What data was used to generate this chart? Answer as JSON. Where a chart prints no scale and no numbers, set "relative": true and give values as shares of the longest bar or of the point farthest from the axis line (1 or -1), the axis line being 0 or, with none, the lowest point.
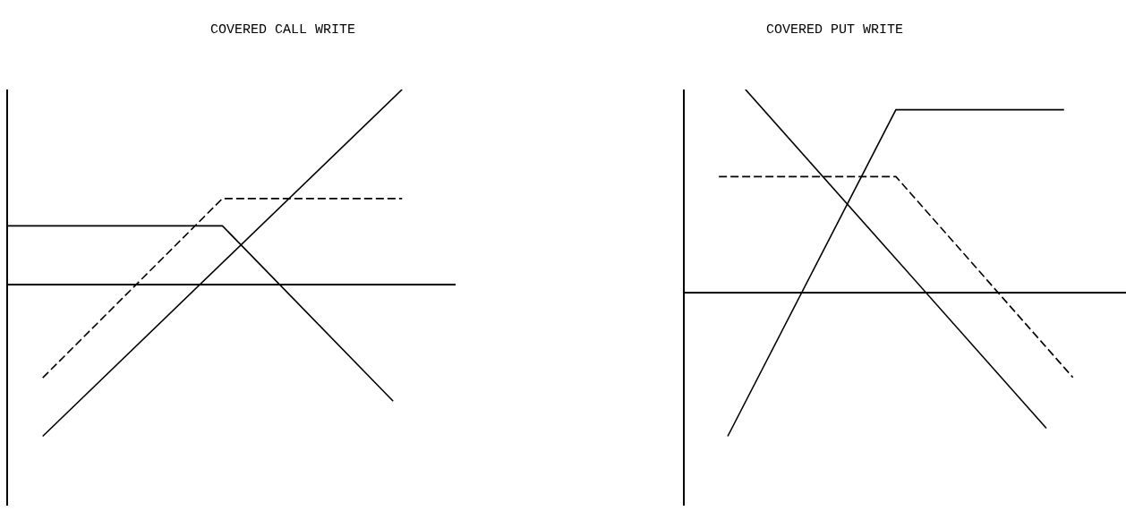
{
  "chart_data": [
    {
      "type": "line",
      "title": "COVERED CALL WRITE",
      "relative": true,
      "categories": [
        null,
        null,
        null,
        null,
        null,
        null,
        null,
        null,
        null,
        null,
        null,
        null,
        null,
        null,
        null,
        null,
        null,
        null,
        null,
        null,
        null,
        null,
        null,
        null,
        null,
        null,
        null,
        null,
        null,
        null,
        null,
        null,
        null,
        null,
        null,
        null,
        null,
        null,
        null,
        null,
        null,
        null,
        null,
        null,
        null,
        null,
        null,
        null,
        null,
        null,
        null
      ],
      "series": [
        {
          "color": "#000000",
          "line_style": "solid",
          "values": [
            null,
            null,
            null,
            null,
            -0.78,
            null,
            null,
            null,
            null,
            null,
            null,
            null,
            null,
            null,
            null,
            null,
            null,
            null,
            null,
            null,
            null,
            null,
            null,
            null,
            null,
            null,
            null,
            null,
            null,
            null,
            null,
            null,
            null,
            null,
            null,
            null,
            null,
            null,
            null,
            null,
            null,
            null,
            null,
            null,
            1.0,
            null,
            null,
            null,
            null,
            null,
            null
          ]
        },
        {
          "color": "#000000",
          "line_style": "solid",
          "values": [
            0.3,
            null,
            null,
            null,
            null,
            null,
            null,
            null,
            null,
            null,
            null,
            null,
            null,
            null,
            null,
            null,
            null,
            null,
            null,
            null,
            null,
            null,
            null,
            null,
            0.3,
            null,
            null,
            null,
            null,
            null,
            null,
            null,
            null,
            null,
            null,
            null,
            null,
            null,
            null,
            null,
            null,
            null,
            null,
            -0.6,
            null,
            null,
            null,
            null,
            null,
            null,
            null
          ]
        },
        {
          "color": "#000000",
          "line_style": "dashed",
          "values": [
            null,
            null,
            null,
            null,
            -0.48,
            null,
            null,
            null,
            null,
            null,
            null,
            null,
            null,
            null,
            null,
            null,
            null,
            null,
            null,
            null,
            null,
            null,
            null,
            null,
            0.44,
            null,
            null,
            null,
            null,
            null,
            null,
            null,
            null,
            null,
            null,
            null,
            null,
            null,
            null,
            null,
            null,
            null,
            null,
            null,
            0.44,
            null,
            null,
            null,
            null,
            null,
            null
          ]
        }
      ]
    },
    {
      "type": "line",
      "title": "COVERED PUT WRITE",
      "relative": true,
      "categories": [
        null,
        null,
        null,
        null,
        null,
        null,
        null,
        null,
        null,
        null,
        null,
        null,
        null,
        null,
        null,
        null,
        null,
        null,
        null,
        null,
        null,
        null,
        null,
        null,
        null,
        null,
        null,
        null,
        null,
        null,
        null,
        null,
        null,
        null,
        null,
        null,
        null,
        null,
        null,
        null,
        null,
        null,
        null,
        null,
        null,
        null,
        null,
        null,
        null,
        null,
        null
      ],
      "series": [
        {
          "color": "#000000",
          "line_style": "solid",
          "values": [
            null,
            null,
            null,
            null,
            null,
            null,
            null,
            1.0,
            null,
            null,
            null,
            null,
            null,
            null,
            null,
            null,
            null,
            null,
            null,
            null,
            null,
            null,
            null,
            null,
            null,
            null,
            null,
            null,
            null,
            null,
            null,
            null,
            null,
            null,
            null,
            null,
            null,
            null,
            null,
            null,
            null,
            -0.67,
            null,
            null,
            null,
            null,
            null,
            null,
            null,
            null,
            null
          ]
        },
        {
          "color": "#000000",
          "line_style": "solid",
          "values": [
            null,
            null,
            null,
            null,
            null,
            -0.71,
            null,
            null,
            null,
            null,
            null,
            null,
            null,
            null,
            null,
            null,
            null,
            null,
            null,
            null,
            null,
            null,
            null,
            null,
            0.9,
            null,
            null,
            null,
            null,
            null,
            null,
            null,
            null,
            null,
            null,
            null,
            null,
            null,
            null,
            null,
            null,
            null,
            null,
            0.9,
            null,
            null,
            null,
            null,
            null,
            null,
            null
          ]
        },
        {
          "color": "#000000",
          "line_style": "dashed",
          "values": [
            null,
            null,
            null,
            null,
            0.57,
            null,
            null,
            null,
            null,
            null,
            null,
            null,
            null,
            null,
            null,
            null,
            null,
            null,
            null,
            null,
            null,
            null,
            null,
            null,
            0.57,
            null,
            null,
            null,
            null,
            null,
            null,
            null,
            null,
            null,
            null,
            null,
            null,
            null,
            null,
            null,
            null,
            null,
            null,
            null,
            -0.42,
            null,
            null,
            null,
            null,
            null,
            null
          ]
        }
      ]
    }
  ]
}
